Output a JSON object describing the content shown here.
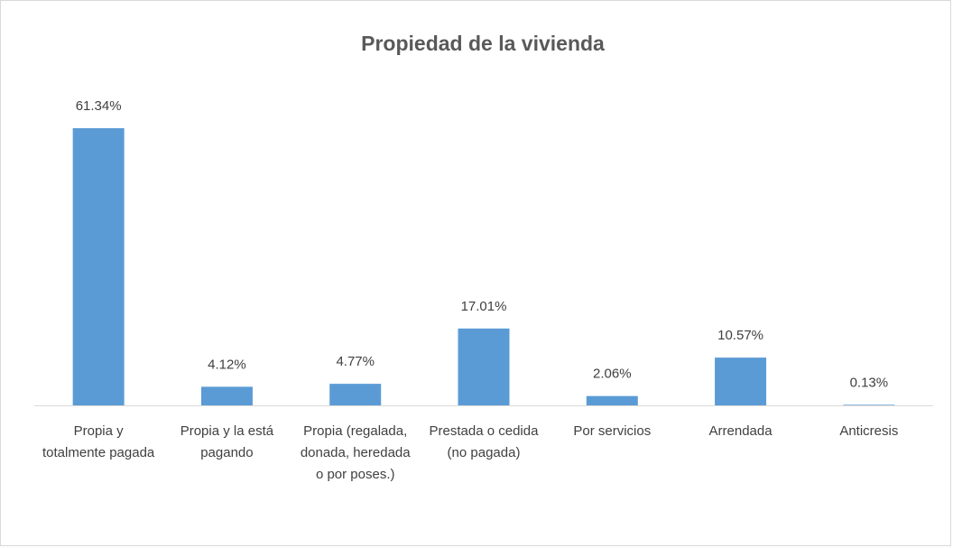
{
  "chart_data": {
    "type": "bar",
    "title": "Propiedad de la vivienda",
    "categories": [
      "Propia y totalmente pagada",
      "Propia y la está pagando",
      "Propia (regalada, donada, heredada o por poses.)",
      "Prestada o cedida (no pagada)",
      "Por servicios",
      "Arrendada",
      "Anticresis"
    ],
    "values": [
      61.34,
      4.12,
      4.77,
      17.01,
      2.06,
      10.57,
      0.13
    ],
    "value_labels": [
      "61.34%",
      "4.12%",
      "4.77%",
      "17.01%",
      "2.06%",
      "10.57%",
      "0.13%"
    ],
    "color": "#5b9bd5"
  }
}
